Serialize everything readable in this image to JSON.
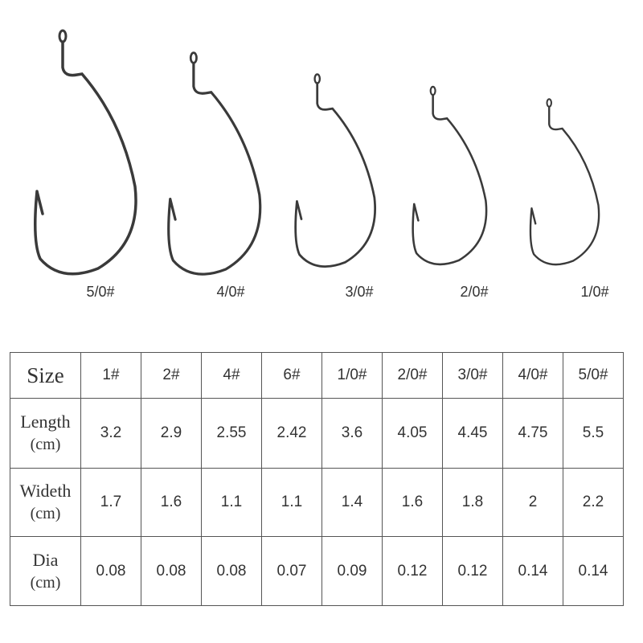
{
  "hooks": [
    {
      "label": "5/0#"
    },
    {
      "label": "4/0#"
    },
    {
      "label": "3/0#"
    },
    {
      "label": "2/0#"
    },
    {
      "label": "1/0#"
    }
  ],
  "table": {
    "size_label": "Size",
    "sizes": [
      "1#",
      "2#",
      "4#",
      "6#",
      "1/0#",
      "2/0#",
      "3/0#",
      "4/0#",
      "5/0#"
    ],
    "rows": [
      {
        "name": "Length",
        "unit": "(cm)",
        "values": [
          "3.2",
          "2.9",
          "2.55",
          "2.42",
          "3.6",
          "4.05",
          "4.45",
          "4.75",
          "5.5"
        ]
      },
      {
        "name": "Wideth",
        "unit": "(cm)",
        "values": [
          "1.7",
          "1.6",
          "1.1",
          "1.1",
          "1.4",
          "1.6",
          "1.8",
          "2",
          "2.2"
        ]
      },
      {
        "name": "Dia",
        "unit": "(cm)",
        "values": [
          "0.08",
          "0.08",
          "0.08",
          "0.07",
          "0.09",
          "0.12",
          "0.12",
          "0.14",
          "0.14"
        ]
      }
    ]
  },
  "colors": {
    "hook": "#3a3a3a",
    "border": "#555555"
  }
}
